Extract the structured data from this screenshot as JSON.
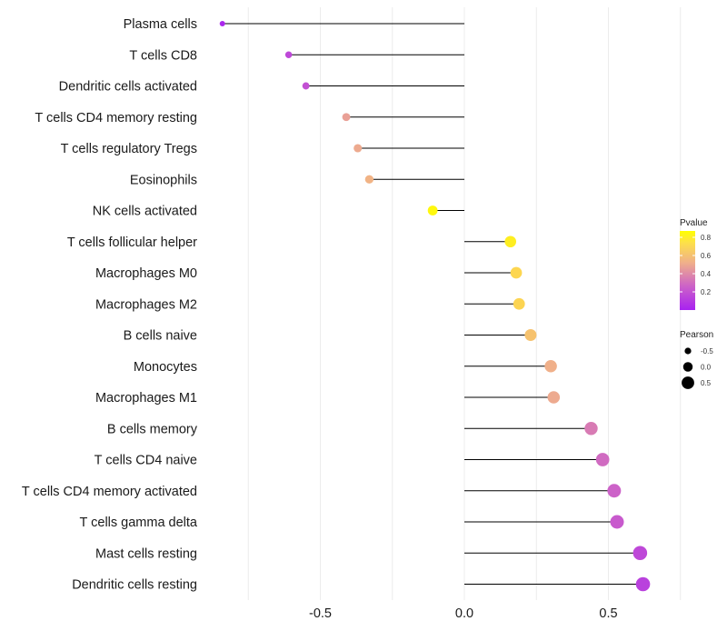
{
  "chart_data": {
    "type": "lollipop",
    "title": "",
    "xlabel": "",
    "ylabel": "",
    "xlim": [
      -0.87,
      0.85
    ],
    "x_ticks": [
      -0.5,
      0.0,
      0.5
    ],
    "x_tick_labels": [
      "-0.5",
      "0.0",
      "0.5"
    ],
    "grid": true,
    "categories": [
      "Plasma cells",
      "T cells CD8",
      "Dendritic cells activated",
      "T cells CD4 memory resting",
      "T cells regulatory  Tregs ",
      "Eosinophils",
      "NK cells activated",
      "T cells follicular helper",
      "Macrophages M0",
      "Macrophages M2",
      "B cells naive",
      "Monocytes",
      "Macrophages M1",
      "B cells memory",
      "T cells CD4 naive",
      "T cells CD4 memory activated",
      "T cells gamma delta",
      "Mast cells resting",
      "Dendritic cells resting"
    ],
    "pearson": [
      -0.84,
      -0.61,
      -0.55,
      -0.41,
      -0.37,
      -0.33,
      -0.11,
      0.16,
      0.18,
      0.19,
      0.23,
      0.3,
      0.31,
      0.44,
      0.48,
      0.52,
      0.53,
      0.61,
      0.62
    ],
    "pvalue": [
      0.02,
      0.15,
      0.18,
      0.45,
      0.48,
      0.52,
      0.85,
      0.82,
      0.75,
      0.74,
      0.62,
      0.5,
      0.48,
      0.33,
      0.28,
      0.25,
      0.22,
      0.15,
      0.12
    ],
    "legend_color": {
      "title": "Pvalue",
      "ticks": [
        0.8,
        0.6,
        0.4,
        0.2
      ],
      "tick_labels": [
        "0.8",
        "0.6",
        "0.4",
        "0.2"
      ],
      "range": [
        0.0,
        0.87
      ],
      "low_color": "#a822f0",
      "mid_color": "#f0b08a",
      "high_color": "#ffff00",
      "placement": "right"
    },
    "legend_size": {
      "title": "Pearson",
      "values": [
        -0.5,
        0.0,
        0.5
      ],
      "labels": [
        "-0.5",
        "0.0",
        "0.5"
      ],
      "placement": "right"
    }
  }
}
